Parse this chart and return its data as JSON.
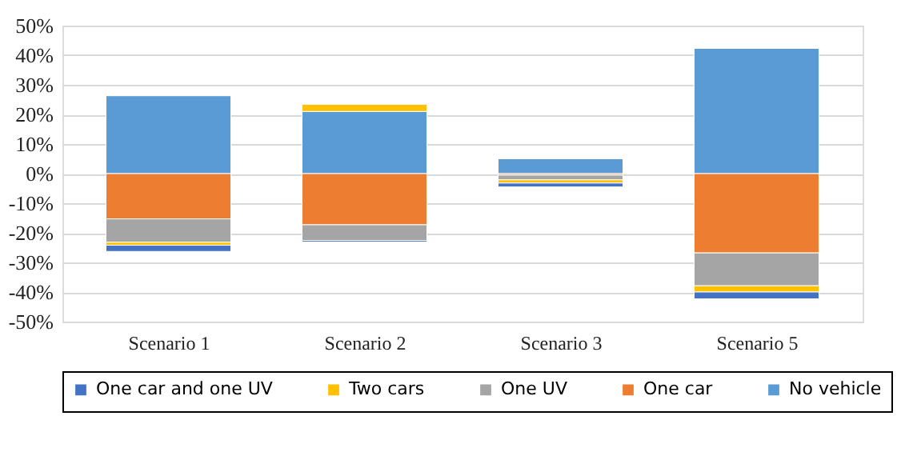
{
  "chart_data": {
    "type": "bar",
    "stacked": true,
    "categories": [
      "Scenario 1",
      "Scenario 2",
      "Scenario 3",
      "Scenario 5"
    ],
    "series": [
      {
        "name": "No vehicle",
        "color": "#5b9bd5",
        "values": [
          26.3,
          21.0,
          5.0,
          42.3
        ]
      },
      {
        "name": "One car",
        "color": "#ed7d31",
        "values": [
          -15.3,
          -17.3,
          -0.5,
          -26.8
        ]
      },
      {
        "name": "One UV",
        "color": "#a5a5a5",
        "values": [
          -7.9,
          -5.3,
          -1.6,
          -11.1
        ]
      },
      {
        "name": "Two cars",
        "color": "#ffc000",
        "values": [
          -1.0,
          2.4,
          -1.1,
          -2.1
        ]
      },
      {
        "name": "One car and one UV",
        "color": "#4472c4",
        "values": [
          -2.1,
          -0.5,
          -1.3,
          -2.3
        ]
      }
    ],
    "ylim": [
      -50,
      50
    ],
    "yticks": [
      {
        "value": -50,
        "label": "-50%"
      },
      {
        "value": -40,
        "label": "-40%"
      },
      {
        "value": -30,
        "label": "-30%"
      },
      {
        "value": -20,
        "label": "-20%"
      },
      {
        "value": -10,
        "label": "-10%"
      },
      {
        "value": 0,
        "label": "0%"
      },
      {
        "value": 10,
        "label": "10%"
      },
      {
        "value": 20,
        "label": "20%"
      },
      {
        "value": 30,
        "label": "30%"
      },
      {
        "value": 40,
        "label": "40%"
      },
      {
        "value": 50,
        "label": "50%"
      }
    ],
    "grid": "y",
    "legend": "bottom"
  }
}
